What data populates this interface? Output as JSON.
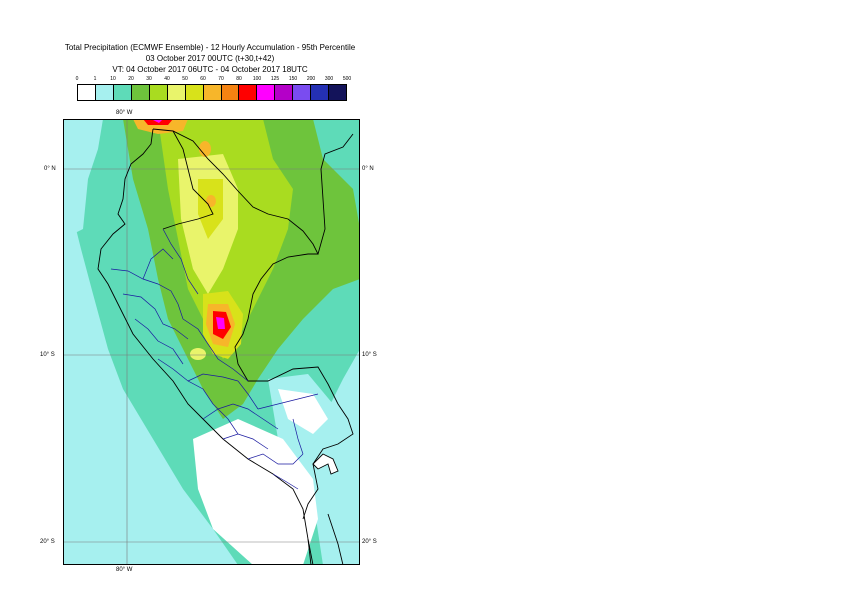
{
  "title": {
    "line1": "Total Precipitation (ECMWF Ensemble) - 12 Hourly Accumulation - 95th Percentile",
    "line2": "03 October 2017 00UTC (t+30,t+42)",
    "line3": "VT: 04 October 2017 06UTC - 04 October 2017 18UTC"
  },
  "legend": {
    "thresholds": [
      "0",
      "1",
      "10",
      "20",
      "30",
      "40",
      "50",
      "60",
      "70",
      "80",
      "100",
      "125",
      "150",
      "200",
      "300",
      "500"
    ],
    "colors": [
      "#ffffff",
      "#a6f0ef",
      "#5edbb8",
      "#6ec43c",
      "#a9dc20",
      "#e9f46b",
      "#d8e21a",
      "#f7b62a",
      "#f58312",
      "#ff0000",
      "#ff00ff",
      "#b400c8",
      "#7a4cf0",
      "#2430b4",
      "#13135a"
    ]
  },
  "map": {
    "graticule": {
      "lon_labels_top": [
        "80° W"
      ],
      "lon_labels_bottom": [
        "80° W"
      ],
      "lat_labels_left": [
        "0° N",
        "10° S",
        "20° S"
      ],
      "lat_labels_right": [
        "0° N",
        "10° S",
        "20° S"
      ]
    },
    "background_color": "#5edbb8"
  }
}
